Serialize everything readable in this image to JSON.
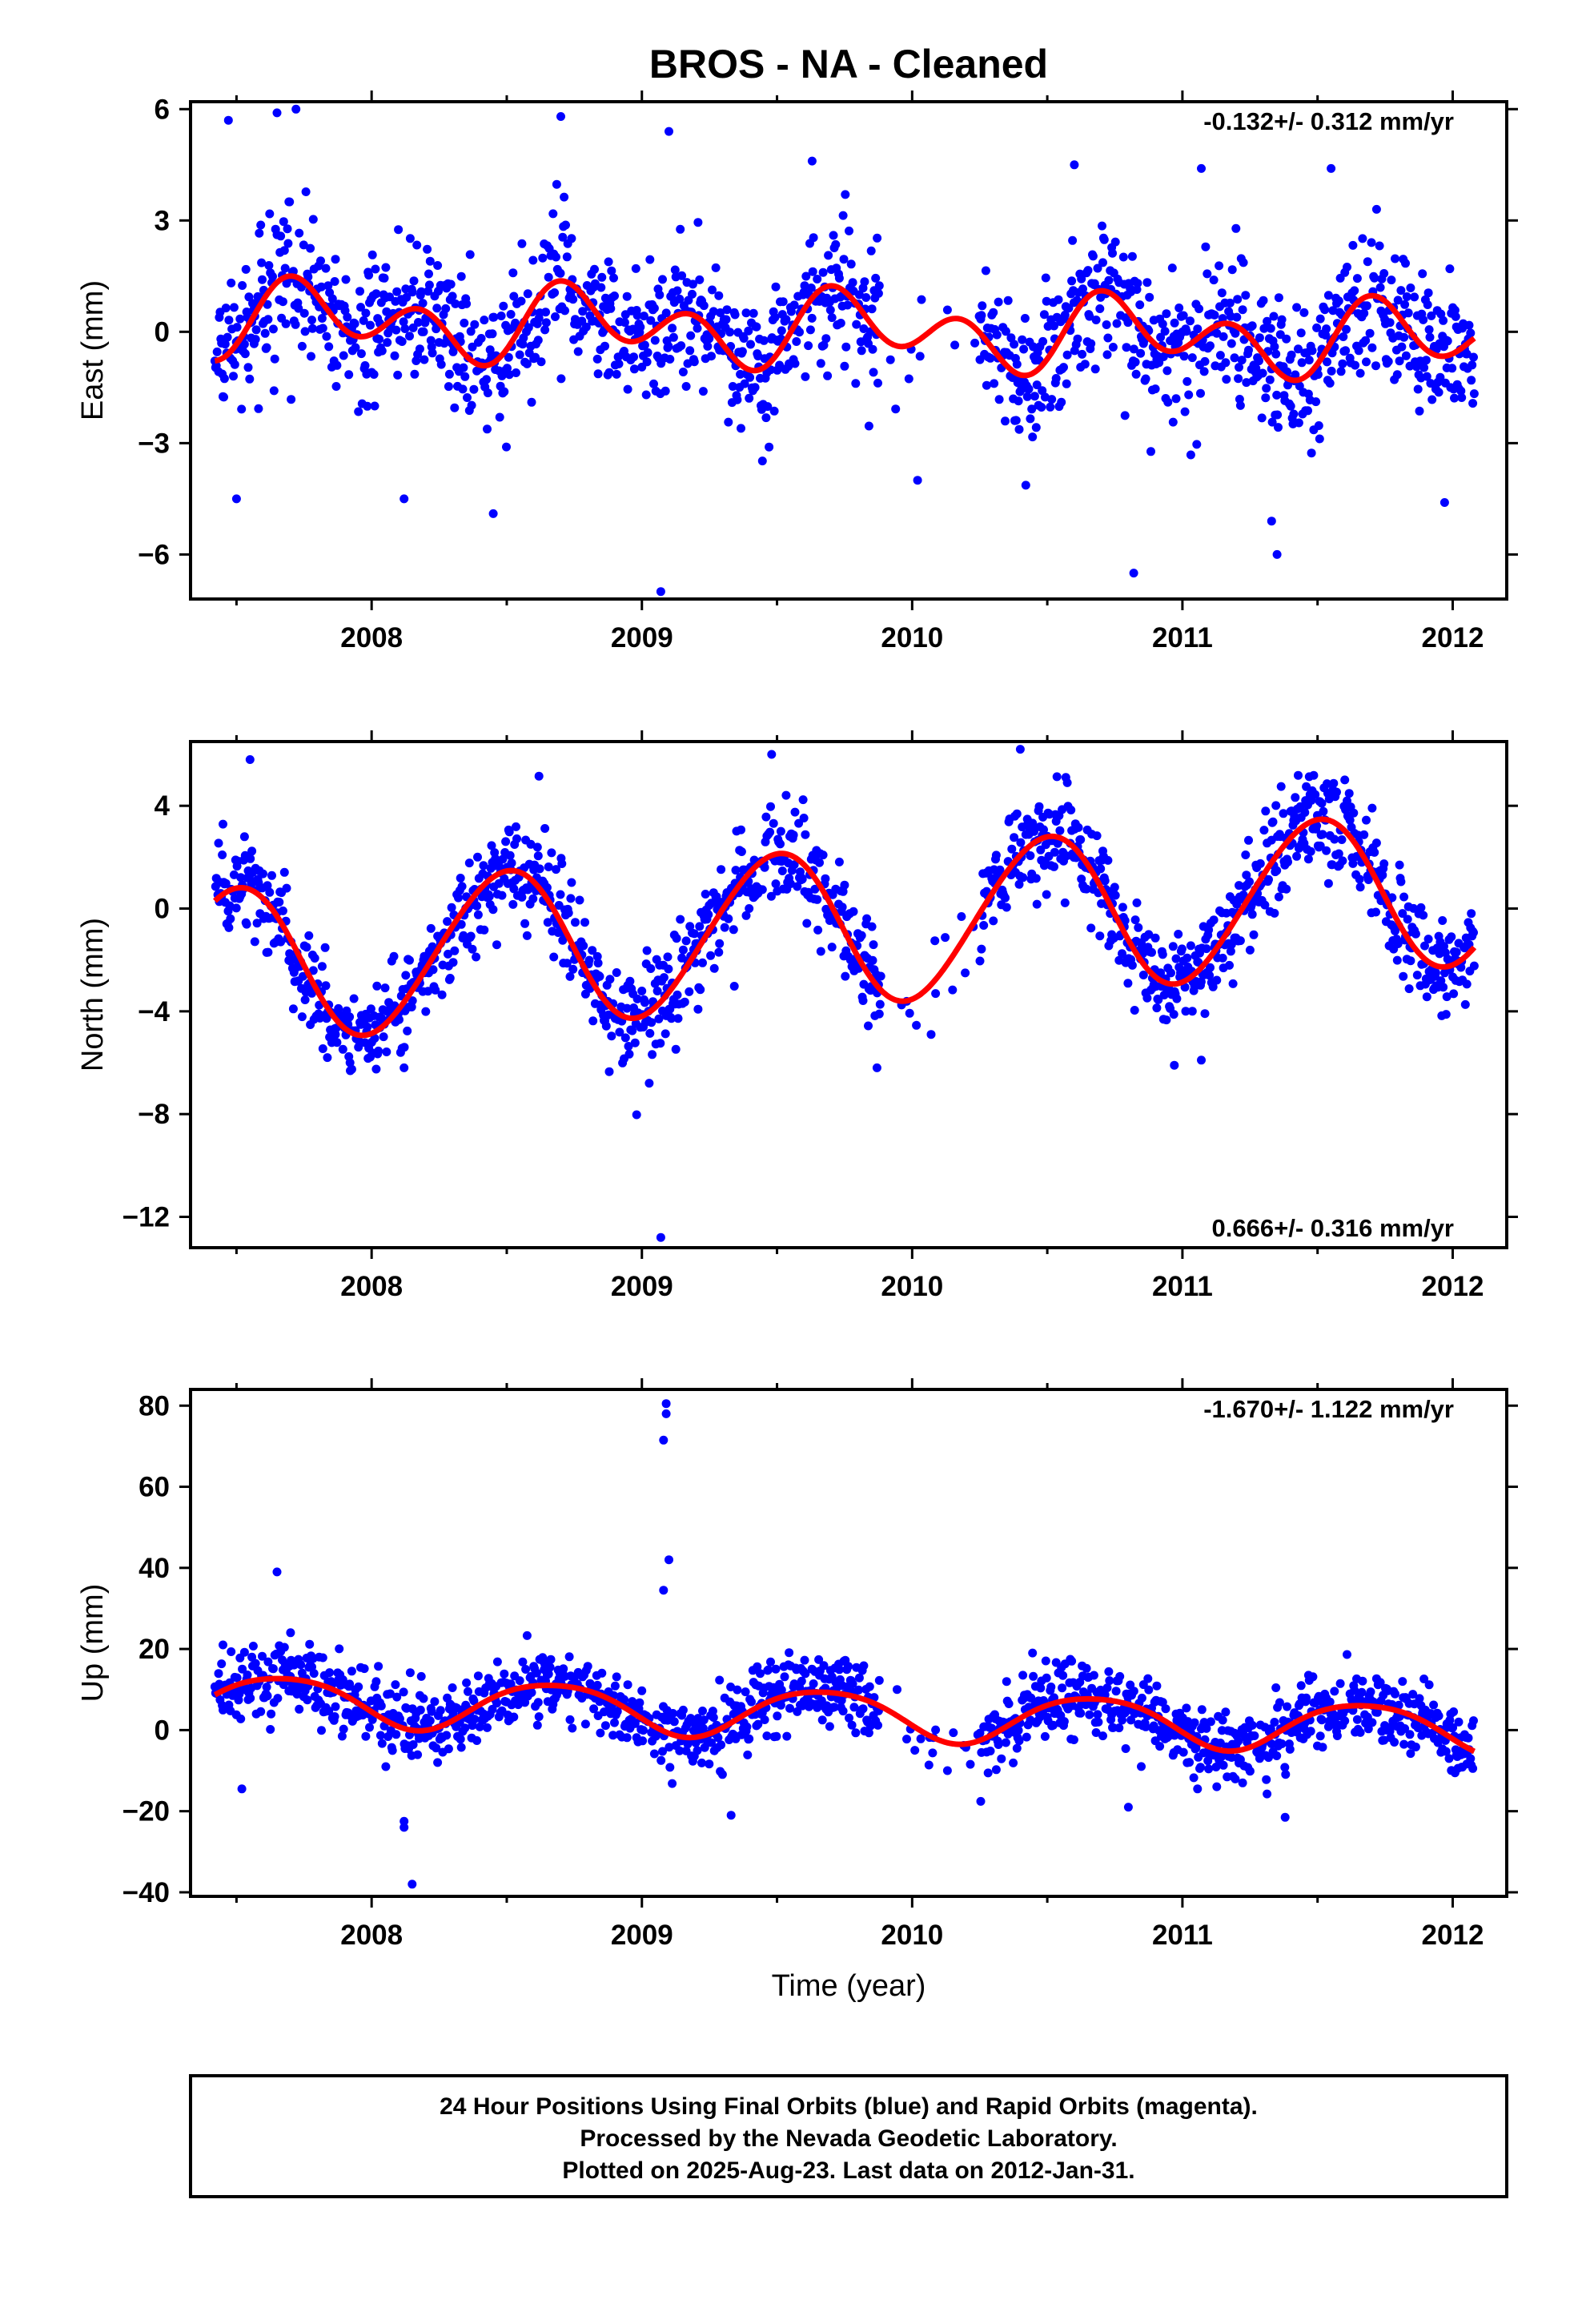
{
  "title": "BROS  - NA - Cleaned",
  "xlabel": "Time (year)",
  "footer": {
    "line1": "24 Hour Positions Using Final Orbits (blue) and Rapid Orbits (magenta).",
    "line2": "Processed by the Nevada Geodetic Laboratory.",
    "line3": "Plotted on 2025-Aug-23. Last data on 2012-Jan-31."
  },
  "colors": {
    "final_orbits": "#0000ff",
    "fit_curve": "#ff0000",
    "frame": "#000000"
  },
  "chart_data": [
    {
      "type": "scatter",
      "name": "east",
      "ylabel": "East (mm)",
      "rate_label": "-0.132+/- 0.312 mm/yr",
      "xlim": [
        2007.33,
        2012.2
      ],
      "ylim": [
        -7.2,
        6.2
      ],
      "x_ticks": [
        2008,
        2009,
        2010,
        2011,
        2012
      ],
      "x_tick_labels": [
        "2008",
        "2009",
        "2010",
        "2011",
        "2012"
      ],
      "y_ticks": [
        -6,
        -3,
        0,
        3,
        6
      ],
      "y_tick_labels": [
        "−6",
        "−3",
        "0",
        "3",
        "6"
      ],
      "data_span": [
        2007.42,
        2012.08
      ],
      "gap": [
        2009.88,
        2010.25
      ],
      "fit": {
        "offset": 0.05,
        "trend": -0.132,
        "a1": 0.55,
        "p1": 2007.55,
        "a2": 0.75,
        "p2": 2007.56
      },
      "noise_sd": 0.95,
      "outliers": [
        [
          2007.47,
          5.7
        ],
        [
          2007.65,
          5.9
        ],
        [
          2007.72,
          6.0
        ],
        [
          2008.45,
          -4.9
        ],
        [
          2008.12,
          -4.5
        ],
        [
          2007.5,
          -4.5
        ],
        [
          2009.07,
          -7.0
        ],
        [
          2009.1,
          5.4
        ],
        [
          2010.82,
          -6.5
        ],
        [
          2011.35,
          -6.0
        ],
        [
          2011.33,
          -5.1
        ],
        [
          2010.6,
          4.5
        ],
        [
          2011.07,
          4.4
        ],
        [
          2011.55,
          4.4
        ],
        [
          2009.63,
          4.6
        ],
        [
          2008.7,
          5.8
        ],
        [
          2011.97,
          -4.6
        ],
        [
          2010.02,
          -4.0
        ]
      ]
    },
    {
      "type": "scatter",
      "name": "north",
      "ylabel": "North (mm)",
      "rate_label": "0.666+/- 0.316 mm/yr",
      "xlim": [
        2007.33,
        2012.2
      ],
      "ylim": [
        -13.2,
        6.5
      ],
      "x_ticks": [
        2008,
        2009,
        2010,
        2011,
        2012
      ],
      "x_tick_labels": [
        "2008",
        "2009",
        "2010",
        "2011",
        "2012"
      ],
      "y_ticks": [
        -12,
        -8,
        -4,
        0,
        4
      ],
      "y_tick_labels": [
        "−12",
        "−8",
        "−4",
        "0",
        "4"
      ],
      "data_span": [
        2007.42,
        2012.08
      ],
      "gap": [
        2009.88,
        2010.25
      ],
      "fit": {
        "offset": -0.7,
        "trend": 0.666,
        "a1": 3.0,
        "p1": 2007.24,
        "a2": 0.2,
        "p2": 2007.0
      },
      "noise_sd": 0.95,
      "outliers": [
        [
          2009.07,
          -12.8
        ],
        [
          2007.55,
          5.8
        ],
        [
          2010.4,
          6.2
        ],
        [
          2008.12,
          -6.2
        ],
        [
          2009.87,
          -6.2
        ],
        [
          2010.97,
          -6.1
        ],
        [
          2011.07,
          -5.9
        ],
        [
          2009.48,
          6.0
        ],
        [
          2007.92,
          -6.0
        ],
        [
          2010.07,
          -4.9
        ]
      ]
    },
    {
      "type": "scatter",
      "name": "up",
      "ylabel": "Up (mm)",
      "rate_label": "-1.670+/- 1.122 mm/yr",
      "xlim": [
        2007.33,
        2012.2
      ],
      "ylim": [
        -41,
        84
      ],
      "x_ticks": [
        2008,
        2009,
        2010,
        2011,
        2012
      ],
      "x_tick_labels": [
        "2008",
        "2009",
        "2010",
        "2011",
        "2012"
      ],
      "y_ticks": [
        -40,
        -20,
        0,
        20,
        40,
        60,
        80
      ],
      "y_tick_labels": [
        "−40",
        "−20",
        "0",
        "20",
        "40",
        "60",
        "80"
      ],
      "data_span": [
        2007.42,
        2012.08
      ],
      "gap": [
        2009.88,
        2010.25
      ],
      "fit": {
        "offset": 4.0,
        "trend": -1.67,
        "a1": 6.0,
        "p1": 2007.42,
        "a2": 0.8,
        "p2": 2007.3
      },
      "noise_sd": 4.6,
      "outliers": [
        [
          2009.09,
          80.5
        ],
        [
          2009.09,
          78.0
        ],
        [
          2009.08,
          71.5
        ],
        [
          2009.1,
          42.0
        ],
        [
          2009.08,
          34.5
        ],
        [
          2007.65,
          39.0
        ],
        [
          2008.12,
          -22.5
        ],
        [
          2008.12,
          -24.0
        ],
        [
          2008.15,
          -38.0
        ],
        [
          2007.7,
          24.0
        ],
        [
          2007.52,
          -14.5
        ],
        [
          2009.33,
          -21.0
        ],
        [
          2011.38,
          -21.5
        ],
        [
          2010.8,
          -19.0
        ],
        [
          2007.45,
          21.0
        ]
      ]
    }
  ]
}
